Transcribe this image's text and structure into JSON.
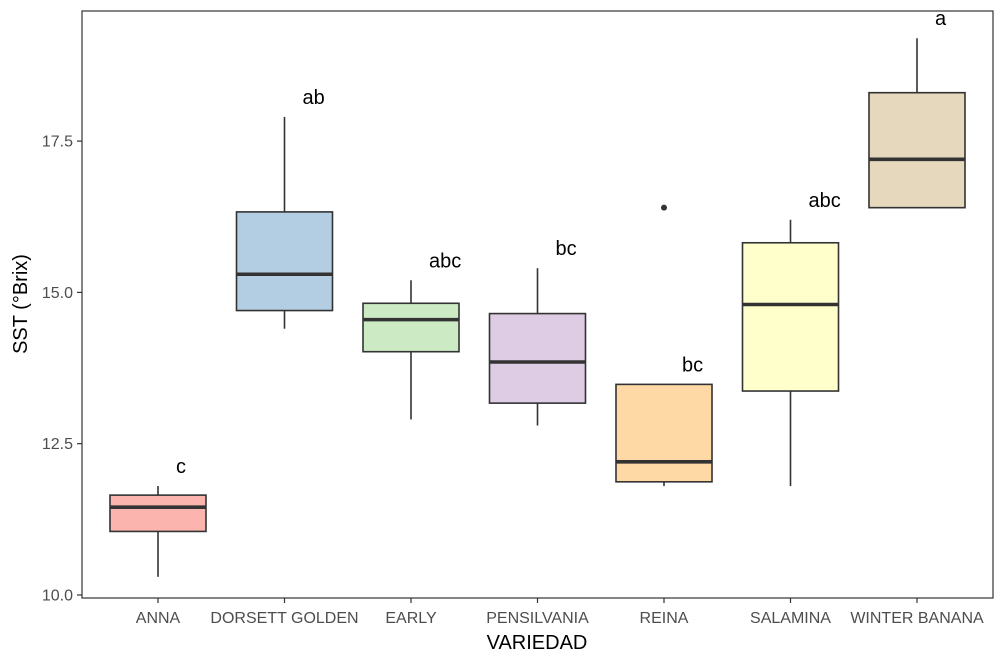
{
  "chart_data": {
    "type": "boxplot",
    "xlabel": "VARIEDAD",
    "ylabel": "SST (°Brix)",
    "ylim": [
      9.95,
      19.65
    ],
    "yticks": [
      10.0,
      12.5,
      15.0,
      17.5
    ],
    "ytick_labels": [
      "10.0",
      "12.5",
      "15.0",
      "17.5"
    ],
    "grid": false,
    "series": [
      {
        "name": "ANNA",
        "color": "#FBB4AE",
        "whisker_low": 10.3,
        "q1": 11.05,
        "median": 11.45,
        "q3": 11.65,
        "whisker_high": 11.8,
        "outliers": [],
        "letter": "c"
      },
      {
        "name": "DORSETT GOLDEN",
        "color": "#B3CDE3",
        "whisker_low": 14.4,
        "q1": 14.7,
        "median": 15.3,
        "q3": 16.33,
        "whisker_high": 17.9,
        "outliers": [],
        "letter": "ab"
      },
      {
        "name": "EARLY",
        "color": "#CCEBC5",
        "whisker_low": 12.9,
        "q1": 14.02,
        "median": 14.55,
        "q3": 14.82,
        "whisker_high": 15.2,
        "outliers": [],
        "letter": "abc"
      },
      {
        "name": "PENSILVANIA",
        "color": "#DECBE4",
        "whisker_low": 12.8,
        "q1": 13.17,
        "median": 13.85,
        "q3": 14.65,
        "whisker_high": 15.4,
        "outliers": [],
        "letter": "bc"
      },
      {
        "name": "REINA",
        "color": "#FED9A6",
        "whisker_low": 11.8,
        "q1": 11.87,
        "median": 12.2,
        "q3": 13.48,
        "whisker_high": 13.48,
        "outliers": [
          16.4
        ],
        "letter": "bc"
      },
      {
        "name": "SALAMINA",
        "color": "#FFFFCC",
        "whisker_low": 11.8,
        "q1": 13.37,
        "median": 14.8,
        "q3": 15.82,
        "whisker_high": 16.2,
        "outliers": [],
        "letter": "abc"
      },
      {
        "name": "WINTER BANANA",
        "color": "#E5D8BD",
        "whisker_low": 16.4,
        "q1": 16.4,
        "median": 17.2,
        "q3": 18.3,
        "whisker_high": 19.2,
        "outliers": [],
        "letter": "a"
      }
    ]
  }
}
